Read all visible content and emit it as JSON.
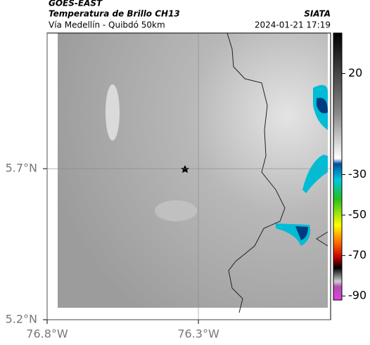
{
  "header": {
    "source": "GOES-EAST",
    "title": "Temperatura de Brillo CH13",
    "brand": "SIATA",
    "subtitle": "Vía Medellín - Quibdó 50km",
    "timestamp": "2024-01-21 17:19"
  },
  "map": {
    "latlim": [
      5.2,
      6.149
    ],
    "lonlim": [
      -76.8,
      -75.863
    ],
    "latticks": [
      {
        "value": 5.7,
        "label": "5.7°N"
      },
      {
        "value": 5.2,
        "label": "5.2°N"
      }
    ],
    "lonticks": [
      {
        "value": -76.8,
        "label": "76.8°W"
      },
      {
        "value": -76.3,
        "label": "76.3°W"
      }
    ],
    "grid": true
  },
  "colorbar": {
    "lim": [
      40,
      -92
    ],
    "ticks": [
      20,
      -30,
      -50,
      -70,
      -90
    ]
  }
}
